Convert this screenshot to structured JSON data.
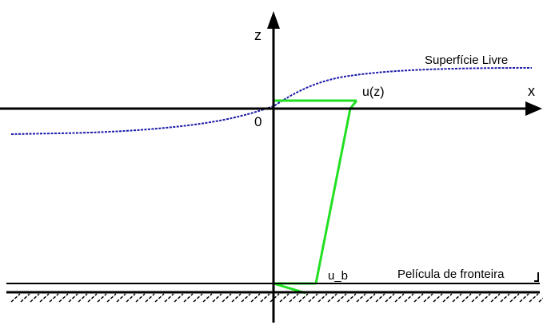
{
  "axes": {
    "z_label": "z",
    "x_label": "x",
    "origin_label": "0"
  },
  "labels": {
    "free_surface": "Superfície Livre",
    "velocity": "u(z)",
    "bottom_velocity": "u_b",
    "boundary_layer": "Película de fronteira"
  },
  "colors": {
    "axis": "#000000",
    "surface_curve": "#1a1aa8",
    "velocity_profile": "#22e022",
    "bed_hatch": "#000000"
  }
}
